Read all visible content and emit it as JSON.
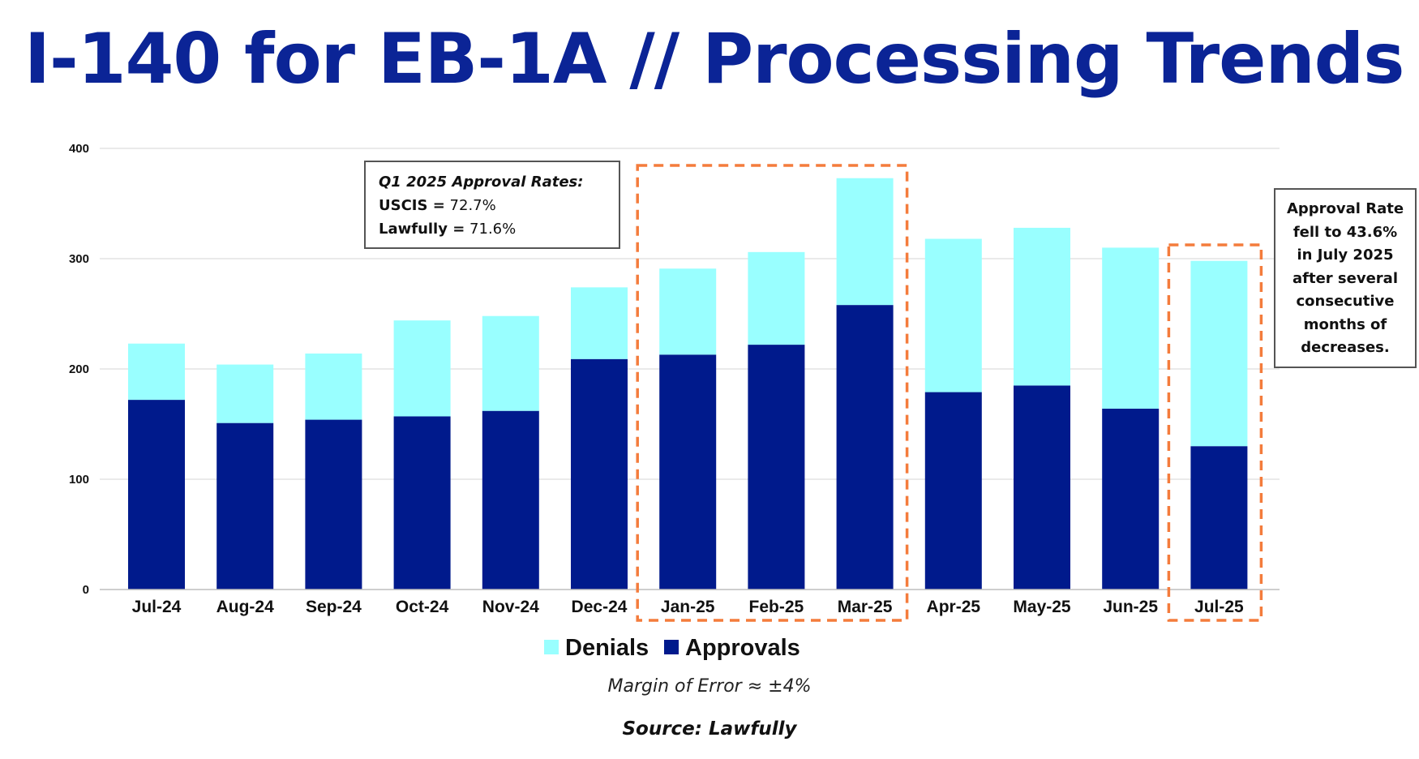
{
  "title": "I-140 for EB-1A // Processing Trends",
  "colors": {
    "title": "#0b2496",
    "approvals": "#001a8c",
    "denials": "#99ffff",
    "highlight": "#f47c3c",
    "grid": "#d6d6d6"
  },
  "chart_data": {
    "type": "bar",
    "stacked": true,
    "categories": [
      "Jul-24",
      "Aug-24",
      "Sep-24",
      "Oct-24",
      "Nov-24",
      "Dec-24",
      "Jan-25",
      "Feb-25",
      "Mar-25",
      "Apr-25",
      "May-25",
      "Jun-25",
      "Jul-25"
    ],
    "series": [
      {
        "name": "Approvals",
        "values": [
          172,
          151,
          154,
          157,
          162,
          209,
          213,
          222,
          258,
          179,
          185,
          164,
          130
        ]
      },
      {
        "name": "Denials",
        "values": [
          51,
          53,
          60,
          87,
          86,
          65,
          78,
          84,
          115,
          139,
          143,
          146,
          168
        ]
      }
    ],
    "ylim": [
      0,
      400
    ],
    "yticks": [
      0,
      100,
      200,
      300,
      400
    ],
    "grid": true,
    "legend": [
      "Denials",
      "Approvals"
    ],
    "legend_position": "bottom",
    "highlighted_categories": [
      [
        "Jan-25",
        "Mar-25"
      ],
      [
        "Jul-25",
        "Jul-25"
      ]
    ]
  },
  "callouts": {
    "q1": {
      "heading": "Q1 2025 Approval Rates:",
      "uscis_label": "USCIS =",
      "uscis_value": "72.7%",
      "lawfully_label": "Lawfully =",
      "lawfully_value": "71.6%"
    },
    "july": {
      "lines": [
        "Approval Rate",
        "fell to 43.6%",
        "in July 2025",
        "after several",
        "consecutive",
        "months of",
        "decreases."
      ]
    }
  },
  "footer": {
    "margin_of_error": "Margin of Error ≈ ±4%",
    "source": "Source: Lawfully"
  }
}
